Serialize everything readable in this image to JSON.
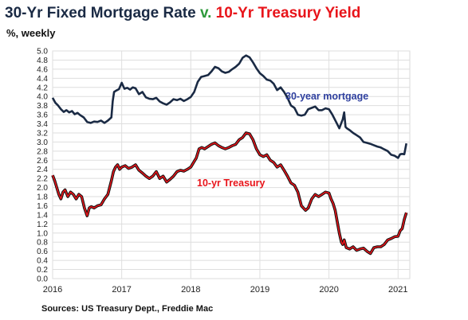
{
  "title": {
    "part1": "30-Yr Fixed Mortgage Rate",
    "part2": "v.",
    "part3": "10-Yr Treasury Yield"
  },
  "subtitle": "%, weekly",
  "source": "Sources: US Treasury Dept., Freddie Mac",
  "colors": {
    "mortgage": "#1a2a44",
    "treasury": "#e8141a",
    "treasury_dark": "#111111",
    "title_dark": "#1a2a44",
    "title_green": "#2e9a3c",
    "title_red": "#e8141a",
    "mortgage_label": "#2e3f9e",
    "treasury_label": "#e8141a"
  },
  "chart_data": {
    "type": "line",
    "xlabel": "",
    "ylabel": "",
    "xlim": [
      2016.0,
      2021.17
    ],
    "ylim": [
      0.0,
      5.0
    ],
    "y_ticks": [
      "0.0",
      "0.2",
      "0.4",
      "0.6",
      "0.8",
      "1.0",
      "1.2",
      "1.4",
      "1.6",
      "1.8",
      "2.0",
      "2.2",
      "2.4",
      "2.6",
      "2.8",
      "3.0",
      "3.2",
      "3.4",
      "3.6",
      "3.8",
      "4.0",
      "4.2",
      "4.4",
      "4.6",
      "4.8",
      "5.0"
    ],
    "x_ticks": [
      {
        "label": "2016",
        "value": 2016.0
      },
      {
        "label": "2017",
        "value": 2017.0
      },
      {
        "label": "2018",
        "value": 2018.0
      },
      {
        "label": "2019",
        "value": 2019.0
      },
      {
        "label": "2020",
        "value": 2020.0
      },
      {
        "label": "2021",
        "value": 2021.0
      }
    ],
    "grid": true,
    "series": [
      {
        "name": "30-year mortgage",
        "x": [
          2016.0,
          2016.04,
          2016.08,
          2016.12,
          2016.16,
          2016.2,
          2016.24,
          2016.28,
          2016.32,
          2016.36,
          2016.4,
          2016.45,
          2016.5,
          2016.55,
          2016.6,
          2016.65,
          2016.7,
          2016.75,
          2016.8,
          2016.85,
          2016.87,
          2016.89,
          2016.92,
          2016.96,
          2017.0,
          2017.04,
          2017.08,
          2017.12,
          2017.16,
          2017.2,
          2017.25,
          2017.3,
          2017.35,
          2017.4,
          2017.45,
          2017.5,
          2017.55,
          2017.6,
          2017.65,
          2017.7,
          2017.75,
          2017.8,
          2017.85,
          2017.9,
          2017.95,
          2018.0,
          2018.05,
          2018.1,
          2018.15,
          2018.2,
          2018.25,
          2018.3,
          2018.35,
          2018.4,
          2018.45,
          2018.5,
          2018.55,
          2018.6,
          2018.65,
          2018.7,
          2018.75,
          2018.8,
          2018.85,
          2018.9,
          2018.95,
          2019.0,
          2019.05,
          2019.1,
          2019.15,
          2019.2,
          2019.25,
          2019.3,
          2019.35,
          2019.4,
          2019.45,
          2019.5,
          2019.55,
          2019.6,
          2019.65,
          2019.7,
          2019.75,
          2019.8,
          2019.85,
          2019.9,
          2019.95,
          2020.0,
          2020.05,
          2020.1,
          2020.15,
          2020.2,
          2020.22,
          2020.24,
          2020.26,
          2020.3,
          2020.35,
          2020.4,
          2020.45,
          2020.5,
          2020.55,
          2020.6,
          2020.65,
          2020.7,
          2020.75,
          2020.8,
          2020.85,
          2020.9,
          2020.95,
          2021.0,
          2021.03,
          2021.06,
          2021.09,
          2021.12
        ],
        "values": [
          3.97,
          3.86,
          3.8,
          3.72,
          3.66,
          3.7,
          3.65,
          3.68,
          3.61,
          3.64,
          3.59,
          3.54,
          3.44,
          3.42,
          3.45,
          3.44,
          3.47,
          3.42,
          3.47,
          3.54,
          3.9,
          4.1,
          4.13,
          4.16,
          4.3,
          4.17,
          4.19,
          4.15,
          4.2,
          4.18,
          4.05,
          4.1,
          3.98,
          3.95,
          3.94,
          3.97,
          3.89,
          3.85,
          3.82,
          3.87,
          3.94,
          3.92,
          3.95,
          3.9,
          3.94,
          3.99,
          4.1,
          4.32,
          4.43,
          4.45,
          4.47,
          4.55,
          4.65,
          4.62,
          4.55,
          4.52,
          4.54,
          4.6,
          4.65,
          4.72,
          4.85,
          4.9,
          4.86,
          4.75,
          4.62,
          4.51,
          4.45,
          4.37,
          4.35,
          4.28,
          4.14,
          4.2,
          4.1,
          3.97,
          3.8,
          3.75,
          3.6,
          3.58,
          3.6,
          3.72,
          3.75,
          3.78,
          3.7,
          3.7,
          3.74,
          3.72,
          3.6,
          3.45,
          3.3,
          3.5,
          3.65,
          3.33,
          3.3,
          3.26,
          3.2,
          3.15,
          3.1,
          3.0,
          2.98,
          2.96,
          2.93,
          2.9,
          2.88,
          2.84,
          2.8,
          2.72,
          2.7,
          2.65,
          2.73,
          2.74,
          2.73,
          2.97
        ]
      },
      {
        "name": "10-yr Treasury",
        "x": [
          2016.0,
          2016.03,
          2016.06,
          2016.09,
          2016.12,
          2016.15,
          2016.18,
          2016.22,
          2016.26,
          2016.3,
          2016.34,
          2016.38,
          2016.42,
          2016.46,
          2016.5,
          2016.53,
          2016.56,
          2016.6,
          2016.65,
          2016.7,
          2016.75,
          2016.8,
          2016.85,
          2016.88,
          2016.91,
          2016.94,
          2016.97,
          2017.0,
          2017.05,
          2017.1,
          2017.15,
          2017.2,
          2017.25,
          2017.3,
          2017.35,
          2017.4,
          2017.45,
          2017.5,
          2017.55,
          2017.6,
          2017.65,
          2017.7,
          2017.75,
          2017.8,
          2017.85,
          2017.9,
          2017.95,
          2018.0,
          2018.04,
          2018.08,
          2018.12,
          2018.16,
          2018.2,
          2018.25,
          2018.3,
          2018.35,
          2018.4,
          2018.45,
          2018.5,
          2018.55,
          2018.6,
          2018.65,
          2018.7,
          2018.75,
          2018.8,
          2018.85,
          2018.9,
          2018.95,
          2019.0,
          2019.05,
          2019.1,
          2019.15,
          2019.2,
          2019.25,
          2019.3,
          2019.35,
          2019.4,
          2019.45,
          2019.5,
          2019.55,
          2019.6,
          2019.63,
          2019.66,
          2019.7,
          2019.75,
          2019.8,
          2019.85,
          2019.9,
          2019.95,
          2020.0,
          2020.03,
          2020.06,
          2020.09,
          2020.12,
          2020.15,
          2020.18,
          2020.2,
          2020.22,
          2020.25,
          2020.3,
          2020.35,
          2020.4,
          2020.45,
          2020.5,
          2020.55,
          2020.6,
          2020.65,
          2020.7,
          2020.75,
          2020.8,
          2020.85,
          2020.9,
          2020.95,
          2021.0,
          2021.03,
          2021.06,
          2021.09,
          2021.12
        ],
        "values": [
          2.27,
          2.15,
          2.0,
          1.85,
          1.75,
          1.9,
          1.95,
          1.8,
          1.9,
          1.85,
          1.75,
          1.85,
          1.8,
          1.55,
          1.38,
          1.55,
          1.58,
          1.55,
          1.6,
          1.62,
          1.75,
          1.85,
          2.15,
          2.35,
          2.45,
          2.5,
          2.4,
          2.45,
          2.48,
          2.42,
          2.45,
          2.5,
          2.38,
          2.32,
          2.25,
          2.2,
          2.25,
          2.35,
          2.2,
          2.25,
          2.12,
          2.18,
          2.25,
          2.35,
          2.38,
          2.36,
          2.4,
          2.45,
          2.55,
          2.65,
          2.85,
          2.88,
          2.85,
          2.9,
          2.95,
          2.98,
          2.92,
          2.88,
          2.85,
          2.88,
          2.92,
          2.95,
          3.05,
          3.1,
          3.2,
          3.18,
          3.05,
          2.85,
          2.72,
          2.68,
          2.72,
          2.6,
          2.55,
          2.45,
          2.5,
          2.38,
          2.25,
          2.1,
          2.05,
          1.9,
          1.6,
          1.55,
          1.5,
          1.55,
          1.75,
          1.85,
          1.8,
          1.85,
          1.9,
          1.88,
          1.75,
          1.65,
          1.5,
          1.25,
          1.0,
          0.8,
          0.75,
          0.85,
          0.68,
          0.65,
          0.7,
          0.62,
          0.65,
          0.67,
          0.6,
          0.55,
          0.68,
          0.7,
          0.7,
          0.75,
          0.85,
          0.88,
          0.92,
          0.93,
          1.05,
          1.1,
          1.3,
          1.45
        ]
      }
    ],
    "annotations": [
      {
        "text": "30-year mortgage",
        "series": "30-year mortgage"
      },
      {
        "text": "10-yr Treasury",
        "series": "10-yr Treasury"
      }
    ]
  }
}
